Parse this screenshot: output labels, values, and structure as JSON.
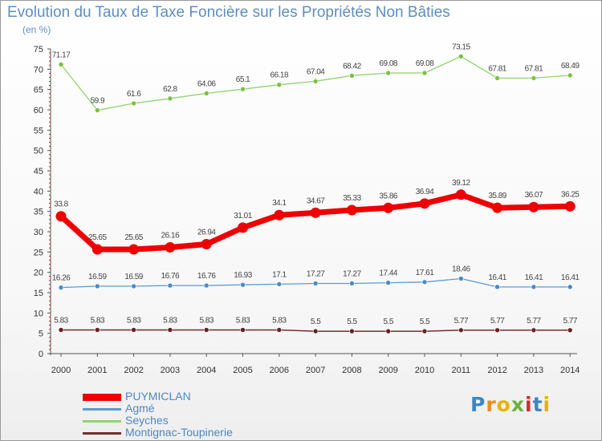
{
  "title": "Evolution du Taux de Taxe Foncière sur les Propriétés Non Bâties",
  "subtitle": "(en %)",
  "logo": {
    "letters": [
      "P",
      "r",
      "o",
      "x",
      "i",
      "t",
      "i"
    ],
    "colors": [
      "#3e86c4",
      "#f08a1e",
      "#e5b400",
      "#6cb33e",
      "#d8282c",
      "#3e86c4",
      "#e5b400"
    ]
  },
  "legend": [
    {
      "label": "PUYMICLAN",
      "color": "#ee0000"
    },
    {
      "label": "Agmé",
      "color": "#5b9bd5"
    },
    {
      "label": "Seyches",
      "color": "#8fd46e"
    },
    {
      "label": "Montignac-Toupinerie",
      "color": "#7a2a2a"
    }
  ],
  "chart_data": {
    "type": "line",
    "title": "Evolution du Taux de Taxe Foncière sur les Propriétés Non Bâties",
    "ylabel": "(en %)",
    "ylim": [
      0,
      75
    ],
    "yticks": [
      0,
      5,
      10,
      15,
      20,
      25,
      30,
      35,
      40,
      45,
      50,
      55,
      60,
      65,
      70,
      75
    ],
    "grid": false,
    "legend_position": "bottom-left",
    "x": [
      "2000",
      "2001",
      "2002",
      "2003",
      "2004",
      "2005",
      "2006",
      "2007",
      "2008",
      "2009",
      "2010",
      "2011",
      "2012",
      "2013",
      "2014"
    ],
    "series": [
      {
        "name": "Seyches",
        "color": "#8fd46e",
        "dot": "#7bc043",
        "width": 1.3,
        "values": [
          71.17,
          59.9,
          61.6,
          62.8,
          64.06,
          65.1,
          66.18,
          67.04,
          68.42,
          69.08,
          69.08,
          73.15,
          67.81,
          67.81,
          68.49
        ],
        "labels": [
          "71.17",
          "59.9",
          "61.6",
          "62.8",
          "64.06",
          "65.1",
          "66.18",
          "67.04",
          "68.42",
          "69.08",
          "69.08",
          "73.15",
          "67.81",
          "67.81",
          "68.49"
        ]
      },
      {
        "name": "PUYMICLAN",
        "color": "#ee0000",
        "dot": "#ee0000",
        "width": 7,
        "values": [
          33.8,
          25.65,
          25.65,
          26.16,
          26.94,
          31.01,
          34.1,
          34.67,
          35.33,
          35.86,
          36.94,
          39.12,
          35.89,
          36.07,
          36.25
        ],
        "labels": [
          "33.8",
          "25.65",
          "25.65",
          "26.16",
          "26.94",
          "31.01",
          "34.1",
          "34.67",
          "35.33",
          "35.86",
          "36.94",
          "39.12",
          "35.89",
          "36.07",
          "36.25"
        ]
      },
      {
        "name": "Agmé",
        "color": "#5b9bd5",
        "dot": "#4a8ac8",
        "width": 1.3,
        "values": [
          16.26,
          16.59,
          16.59,
          16.76,
          16.76,
          16.93,
          17.1,
          17.27,
          17.27,
          17.44,
          17.61,
          18.46,
          16.41,
          16.41,
          16.41
        ],
        "labels": [
          "16.26",
          "16.59",
          "16.59",
          "16.76",
          "16.76",
          "16.93",
          "17.1",
          "17.27",
          "17.27",
          "17.44",
          "17.61",
          "18.46",
          "16.41",
          "16.41",
          "16.41"
        ]
      },
      {
        "name": "Montignac-Toupinerie",
        "color": "#7a2a2a",
        "dot": "#6a1e1e",
        "width": 1.5,
        "values": [
          5.83,
          5.83,
          5.83,
          5.83,
          5.83,
          5.83,
          5.83,
          5.5,
          5.5,
          5.5,
          5.5,
          5.77,
          5.77,
          5.77,
          5.77
        ],
        "labels": [
          "5.83",
          "5.83",
          "5.83",
          "5.83",
          "5.83",
          "5.83",
          "5.83",
          "5.5",
          "5.5",
          "5.5",
          "5.5",
          "5.77",
          "5.77",
          "5.77",
          "5.77"
        ]
      }
    ]
  }
}
